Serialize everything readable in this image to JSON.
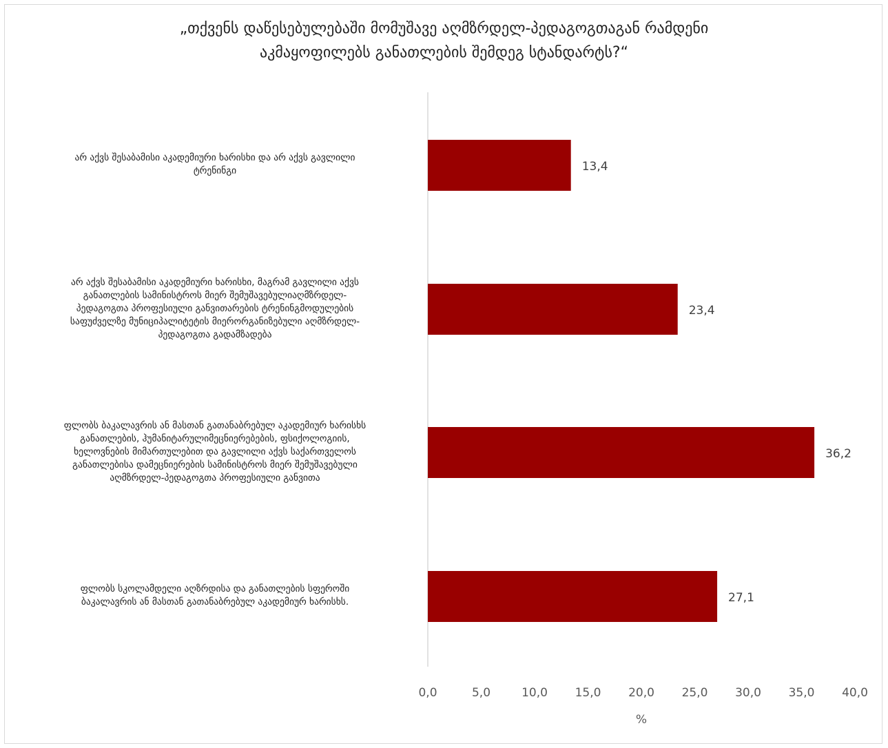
{
  "chart_data": {
    "type": "bar",
    "orientation": "horizontal",
    "title_lines": [
      "„თქვენს დაწესებულებაში მომუშავე აღმზრდელ-პედაგოგთაგან რამდენი",
      "აკმაყოფილებს განათლების შემდეგ სტანდარტს?“"
    ],
    "categories": [
      {
        "lines": [
          "არ აქვს შესაბამისი აკადემიური ხარისხი და არ აქვს გავლილი",
          "ტრენინგი"
        ]
      },
      {
        "lines": [
          "არ აქვს შესაბამისი აკადემიური ხარისხი, მაგრამ გავლილი აქვს",
          "განათლების სამინისტროს მიერ შემუშავებულიაღმზრდელ-",
          "პედაგოგთა პროფესიული განვითარების ტრენინგმოდულების",
          "საფუძველზე მუნიციპალიტეტის მიერორგანიზებული აღმზრდელ-",
          "პედაგოგთა გადამზადება"
        ]
      },
      {
        "lines": [
          "ფლობს ბაკალავრის ან მასთან გათანაბრებულ აკადემიურ ხარისხს",
          "განათლების, ჰუმანიტარულიმეცნიერებების, ფსიქოლოგიის,",
          "ხელოვნების მიმართულებით და გავლილი აქვს საქართველოს",
          "განათლებისა დამეცნიერების სამინისტროს მიერ შემუშავებული",
          "აღმზრდელ-პედაგოგთა პროფესიული განვითა"
        ]
      },
      {
        "lines": [
          "ფლობს სკოლამდელი აღზრდისა და განათლების სფეროში",
          "ბაკალავრის ან მასთან გათანაბრებულ აკადემიურ ხარისხს."
        ]
      }
    ],
    "values": [
      13.4,
      23.4,
      36.2,
      27.1
    ],
    "value_labels": [
      "13,4",
      "23,4",
      "36,2",
      "27,1"
    ],
    "xlim": [
      0,
      40
    ],
    "xticks": [
      0,
      5,
      10,
      15,
      20,
      25,
      30,
      35,
      40
    ],
    "xtick_labels": [
      "0,0",
      "5,0",
      "10,0",
      "15,0",
      "20,0",
      "25,0",
      "30,0",
      "35,0",
      "40,0"
    ],
    "xlabel": "%",
    "bar_color": "#990000",
    "axis_color": "#d9d9d9",
    "grid": false
  }
}
